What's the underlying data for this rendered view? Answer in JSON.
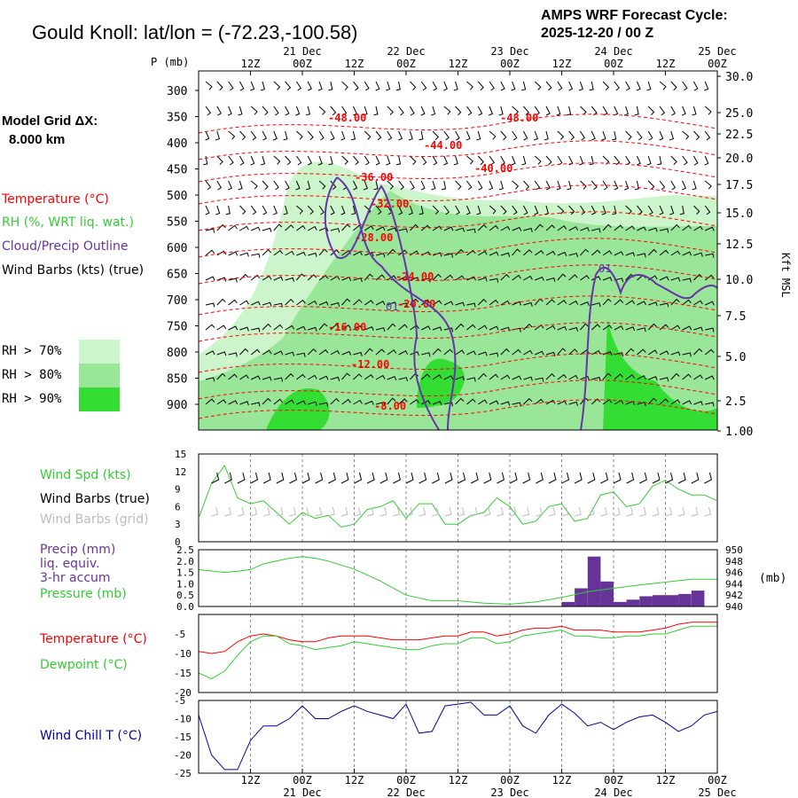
{
  "header": {
    "title": "Gould Knoll:  lat/lon = (-72.23,-100.58)",
    "cycle_line1": "AMPS WRF Forecast Cycle:",
    "cycle_line2": "2025-12-20 / 00  Z"
  },
  "model_grid": {
    "label": "Model Grid ΔX:",
    "value": "8.000 km"
  },
  "legend_top": {
    "temperature": "Temperature (°C)",
    "rh": "RH (%, WRT liq. wat.)",
    "cloud": "Cloud/Precip Outline",
    "wind": "Wind Barbs (kts) (true)",
    "rh70": "RH > 70%",
    "rh80": "RH > 80%",
    "rh90": "RH > 90%"
  },
  "colors": {
    "rh70": "#ccf5cc",
    "rh80": "#99e699",
    "rh90": "#33dd33",
    "temperature": "#ff0000",
    "cloud": "#6633aa",
    "wind_speed": "#33cc33",
    "pressure": "#33cc33",
    "precip": "#663399",
    "dewpoint": "#33cc33",
    "wind_chill": "#000099",
    "grid_barbs": "#bbbbbb"
  },
  "time_axis": {
    "top_days": [
      "21 Dec",
      "22 Dec",
      "23 Dec",
      "24 Dec",
      "25 Dec"
    ],
    "hours": [
      "12Z",
      "00Z",
      "12Z",
      "00Z",
      "12Z",
      "00Z",
      "12Z",
      "00Z",
      "12Z",
      "00Z"
    ]
  },
  "chart_data": [
    {
      "type": "contour",
      "name": "time-height cross section",
      "y_axis_label": "P (mb)",
      "pressure_ticks": [
        "300",
        "350",
        "400",
        "450",
        "500",
        "550",
        "600",
        "650",
        "700",
        "750",
        "800",
        "850",
        "900"
      ],
      "height_axis_label": "Kft MSL",
      "height_ticks": [
        "30.0",
        "25.0",
        "22.5",
        "20.0",
        "17.5",
        "15.0",
        "12.5",
        "10.0",
        "7.5",
        "5.0",
        "2.5",
        "1.00"
      ],
      "temperature_contour_labels": [
        "-48.00",
        "-48.00",
        "-44.00",
        "-40.00",
        "-36.00",
        "-32.00",
        "-28.00",
        "-24.00",
        "-20.00",
        "-16.00",
        "-12.00",
        "-8.00"
      ],
      "cloud_outline_labels": [
        "01",
        "01"
      ]
    },
    {
      "type": "line",
      "name": "wind speed",
      "legend": [
        "Wind Spd (kts)",
        "Wind Barbs (true)",
        "Wind Barbs (grid)"
      ],
      "ylim": [
        0,
        15
      ],
      "yticks": [
        "0",
        "3",
        "6",
        "9",
        "12",
        "15"
      ],
      "x_hours": [
        0,
        3,
        6,
        9,
        12,
        15,
        18,
        21,
        24,
        27,
        30,
        33,
        36,
        39,
        42,
        45,
        48,
        51,
        54,
        57,
        60,
        63,
        66,
        69,
        72,
        75,
        78,
        81,
        84,
        87,
        90,
        93,
        96,
        99,
        102,
        105,
        108,
        111,
        114,
        117,
        120
      ],
      "values": [
        4,
        10,
        13,
        7.5,
        6.5,
        7,
        5,
        3,
        5,
        4,
        4.5,
        2.5,
        3,
        5.5,
        6,
        7,
        4,
        6.5,
        6.5,
        3,
        3,
        4.5,
        5,
        7.5,
        6,
        3,
        3.5,
        6,
        6.5,
        3.5,
        4,
        8,
        8.5,
        6,
        6.5,
        9.5,
        10.5,
        9,
        8,
        8,
        7
      ]
    },
    {
      "type": "bar+line",
      "name": "precip and pressure",
      "legend": [
        "Precip (mm)",
        "liq. equiv.",
        "3-hr accum",
        "Pressure (mb)"
      ],
      "left_ylim": [
        0,
        2.5
      ],
      "left_ticks": [
        "0.0",
        "0.5",
        "1.0",
        "1.5",
        "2.0",
        "2.5"
      ],
      "right_ylim": [
        940,
        950
      ],
      "right_ticks": [
        "940",
        "942",
        "944",
        "946",
        "948",
        "950"
      ],
      "right_unit": "(mb)",
      "precip_x_hours": [
        48,
        51,
        87,
        90,
        93,
        96,
        99,
        102,
        105,
        108,
        111,
        114,
        117
      ],
      "precip_values": [
        0.02,
        0.02,
        0.2,
        0.8,
        2.2,
        1.1,
        0.2,
        0.3,
        0.45,
        0.5,
        0.5,
        0.55,
        0.7
      ],
      "pressure_x_hours": [
        0,
        6,
        9,
        12,
        15,
        18,
        21,
        24,
        27,
        30,
        36,
        42,
        48,
        54,
        60,
        66,
        72,
        78,
        84,
        90,
        96,
        102,
        108,
        114,
        120
      ],
      "pressure_values": [
        946.5,
        946,
        946.2,
        946.5,
        947.5,
        948,
        948.5,
        948.8,
        948.5,
        948,
        946.6,
        944.5,
        942,
        941,
        941,
        940.6,
        940.4,
        940.8,
        941.6,
        942.6,
        943.2,
        943.8,
        944.3,
        944.8,
        944.8
      ]
    },
    {
      "type": "line",
      "name": "temperature and dewpoint",
      "series": [
        {
          "name": "Temperature (°C)",
          "x_hours": [
            0,
            3,
            6,
            9,
            12,
            15,
            18,
            21,
            24,
            27,
            30,
            33,
            36,
            39,
            42,
            45,
            48,
            51,
            54,
            57,
            60,
            63,
            66,
            69,
            72,
            75,
            78,
            81,
            84,
            87,
            90,
            93,
            96,
            99,
            102,
            105,
            108,
            111,
            114,
            117,
            120
          ],
          "values": [
            -9.5,
            -10,
            -9.5,
            -7,
            -5.5,
            -5,
            -5.5,
            -6.5,
            -7,
            -7,
            -6,
            -5.5,
            -5.5,
            -5.5,
            -6,
            -6.5,
            -6.5,
            -6.5,
            -6,
            -5.5,
            -5.5,
            -4.5,
            -4.5,
            -5.5,
            -5,
            -4,
            -3.5,
            -3.5,
            -3,
            -4,
            -4,
            -4,
            -4.5,
            -4.5,
            -4.5,
            -4,
            -3.5,
            -2.5,
            -2,
            -2,
            -2
          ]
        },
        {
          "name": "Dewpoint (°C)",
          "x_hours": [
            0,
            3,
            6,
            9,
            12,
            15,
            18,
            21,
            24,
            27,
            30,
            33,
            36,
            39,
            42,
            45,
            48,
            51,
            54,
            57,
            60,
            63,
            66,
            69,
            72,
            75,
            78,
            81,
            84,
            87,
            90,
            93,
            96,
            99,
            102,
            105,
            108,
            111,
            114,
            117,
            120
          ],
          "values": [
            -15,
            -16.5,
            -14.5,
            -10.5,
            -7,
            -5.5,
            -5.5,
            -7.5,
            -8,
            -9,
            -8.5,
            -8,
            -7,
            -7.5,
            -8,
            -8.5,
            -9,
            -9,
            -8,
            -7.5,
            -7.5,
            -6,
            -6,
            -7.5,
            -7,
            -5.5,
            -5,
            -4.5,
            -4,
            -5.5,
            -5.5,
            -6,
            -6,
            -5.5,
            -5.5,
            -5,
            -5,
            -4,
            -3,
            -3,
            -3
          ]
        }
      ],
      "ylim": [
        -20,
        0
      ],
      "yticks": [
        "-5",
        "-10",
        "-15",
        "-20"
      ]
    },
    {
      "type": "line",
      "name": "wind chill",
      "legend": [
        "Wind Chill T (°C)"
      ],
      "ylim": [
        -25,
        -5
      ],
      "yticks": [
        "-5",
        "-10",
        "-15",
        "-20",
        "-25"
      ],
      "x_hours": [
        0,
        3,
        6,
        9,
        12,
        15,
        18,
        21,
        24,
        27,
        30,
        33,
        36,
        39,
        42,
        45,
        48,
        51,
        54,
        57,
        60,
        63,
        66,
        69,
        72,
        75,
        78,
        81,
        84,
        87,
        90,
        93,
        96,
        99,
        102,
        105,
        108,
        111,
        114,
        117,
        120
      ],
      "values": [
        -9,
        -20,
        -24,
        -24,
        -16,
        -12,
        -12,
        -10,
        -6.5,
        -10,
        -10,
        -8,
        -6.5,
        -8,
        -9,
        -10,
        -6,
        -14,
        -13.5,
        -6.5,
        -6,
        -5.5,
        -9,
        -9,
        -6.5,
        -12,
        -14,
        -9,
        -6,
        -8.5,
        -12,
        -11,
        -13,
        -11,
        -9.5,
        -9,
        -11,
        -13.5,
        -12,
        -9,
        -8
      ]
    }
  ]
}
